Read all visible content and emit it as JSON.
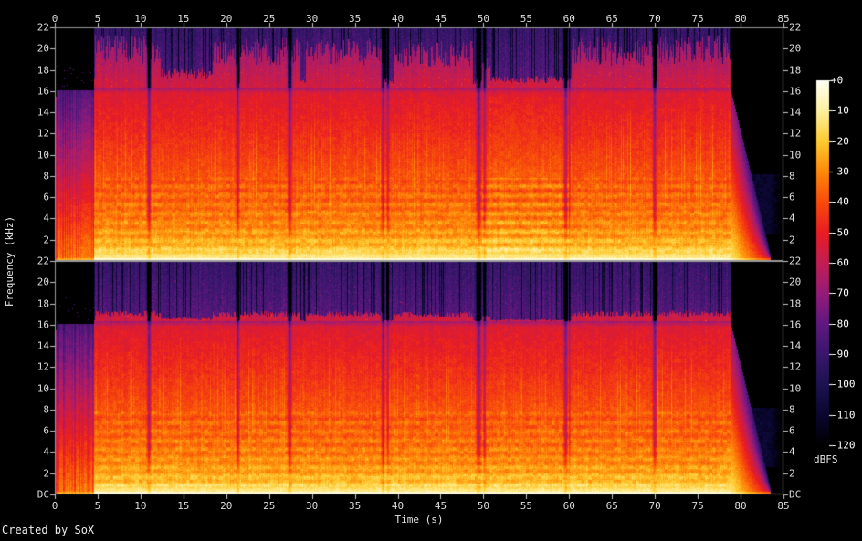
{
  "credit": "Created by SoX",
  "colors": {
    "background": "#000000",
    "label_text": "#dcdcdc",
    "tick": "#c8c8c8",
    "frame": "#9a9a9a",
    "palette": [
      [
        0.0,
        "#000000"
      ],
      [
        0.0833,
        "#0a0630"
      ],
      [
        0.1667,
        "#1c1250"
      ],
      [
        0.25,
        "#39166c"
      ],
      [
        0.3333,
        "#5f1880"
      ],
      [
        0.4167,
        "#951b78"
      ],
      [
        0.5,
        "#c21d54"
      ],
      [
        0.5833,
        "#e91c23"
      ],
      [
        0.6667,
        "#f84b0b"
      ],
      [
        0.75,
        "#fe8809"
      ],
      [
        0.8333,
        "#fecb2f"
      ],
      [
        0.9167,
        "#fdf0a0"
      ],
      [
        1.0,
        "#fffff5"
      ]
    ]
  },
  "chart_data": {
    "type": "heatmap",
    "subtype": "audio-spectrogram",
    "title": "",
    "xlabel": "Time (s)",
    "ylabel": "Frequency (kHz)",
    "x_range_s": [
      0,
      85
    ],
    "x_ticks": [
      0,
      5,
      10,
      15,
      20,
      25,
      30,
      35,
      40,
      45,
      50,
      55,
      60,
      65,
      70,
      75,
      80,
      85
    ],
    "y_range_khz": [
      0,
      22
    ],
    "freq_tick_values": [
      22,
      20,
      18,
      16,
      14,
      12,
      10,
      8,
      6,
      4,
      2,
      0
    ],
    "freq_tick_labels": [
      "22",
      "20",
      "18",
      "16",
      "14",
      "12",
      "10",
      "8",
      "6",
      "4",
      "2",
      "DC"
    ],
    "top_chart_shows_dc_label": false,
    "channels": [
      {
        "name": "top"
      },
      {
        "name": "bottom"
      }
    ],
    "colorbar": {
      "label": "dBFS",
      "range_db": [
        -120,
        0
      ],
      "tick_labels": [
        "+0",
        "-10",
        "-20",
        "-30",
        "-40",
        "-50",
        "-60",
        "-70",
        "-80",
        "-90",
        "-100",
        "-110",
        "-120"
      ]
    },
    "structure": {
      "duration_s": 85,
      "onset_click_s": [
        0.05,
        0.2
      ],
      "intro_comb": {
        "start_s": 0.2,
        "end_s": 4.58,
        "top_khz": 16.1
      },
      "main": {
        "start_s": 4.58,
        "end_s": 78.85,
        "lowpass_khz": 16.2
      },
      "fade_out": {
        "start_s": 78.85,
        "end_s": 83.55
      },
      "noise_blob": {
        "t_s": [
          79.3,
          84.6
        ],
        "khz": [
          2.6,
          8.2
        ],
        "level_db": -110
      },
      "silence_gaps": [
        [
          11.0,
          0.14,
          1.0
        ],
        [
          21.35,
          0.12,
          0.9
        ],
        [
          27.4,
          0.15,
          0.95
        ],
        [
          38.3,
          0.12,
          0.85
        ],
        [
          38.85,
          0.1,
          0.6
        ],
        [
          49.45,
          0.18,
          1.0
        ],
        [
          50.15,
          0.12,
          0.7
        ],
        [
          59.6,
          0.15,
          0.95
        ],
        [
          60.05,
          0.08,
          0.5
        ],
        [
          70.0,
          0.15,
          0.95
        ]
      ],
      "hf_bursts": [
        [
          4.7,
          12.4,
          0.95
        ],
        [
          12.4,
          18.4,
          0.35
        ],
        [
          18.4,
          21.2,
          0.85
        ],
        [
          21.6,
          28.6,
          0.9
        ],
        [
          29.3,
          38.2,
          0.9
        ],
        [
          39.5,
          48.8,
          0.85
        ],
        [
          49.8,
          50.8,
          0.55
        ],
        [
          50.8,
          59.5,
          0.22
        ],
        [
          60.3,
          69.8,
          0.9
        ],
        [
          70.2,
          78.8,
          0.95
        ]
      ],
      "hf_burst_right_factor": 0.38,
      "stepped_band_region_top_channel_s": [
        49.8,
        60.0
      ]
    }
  }
}
